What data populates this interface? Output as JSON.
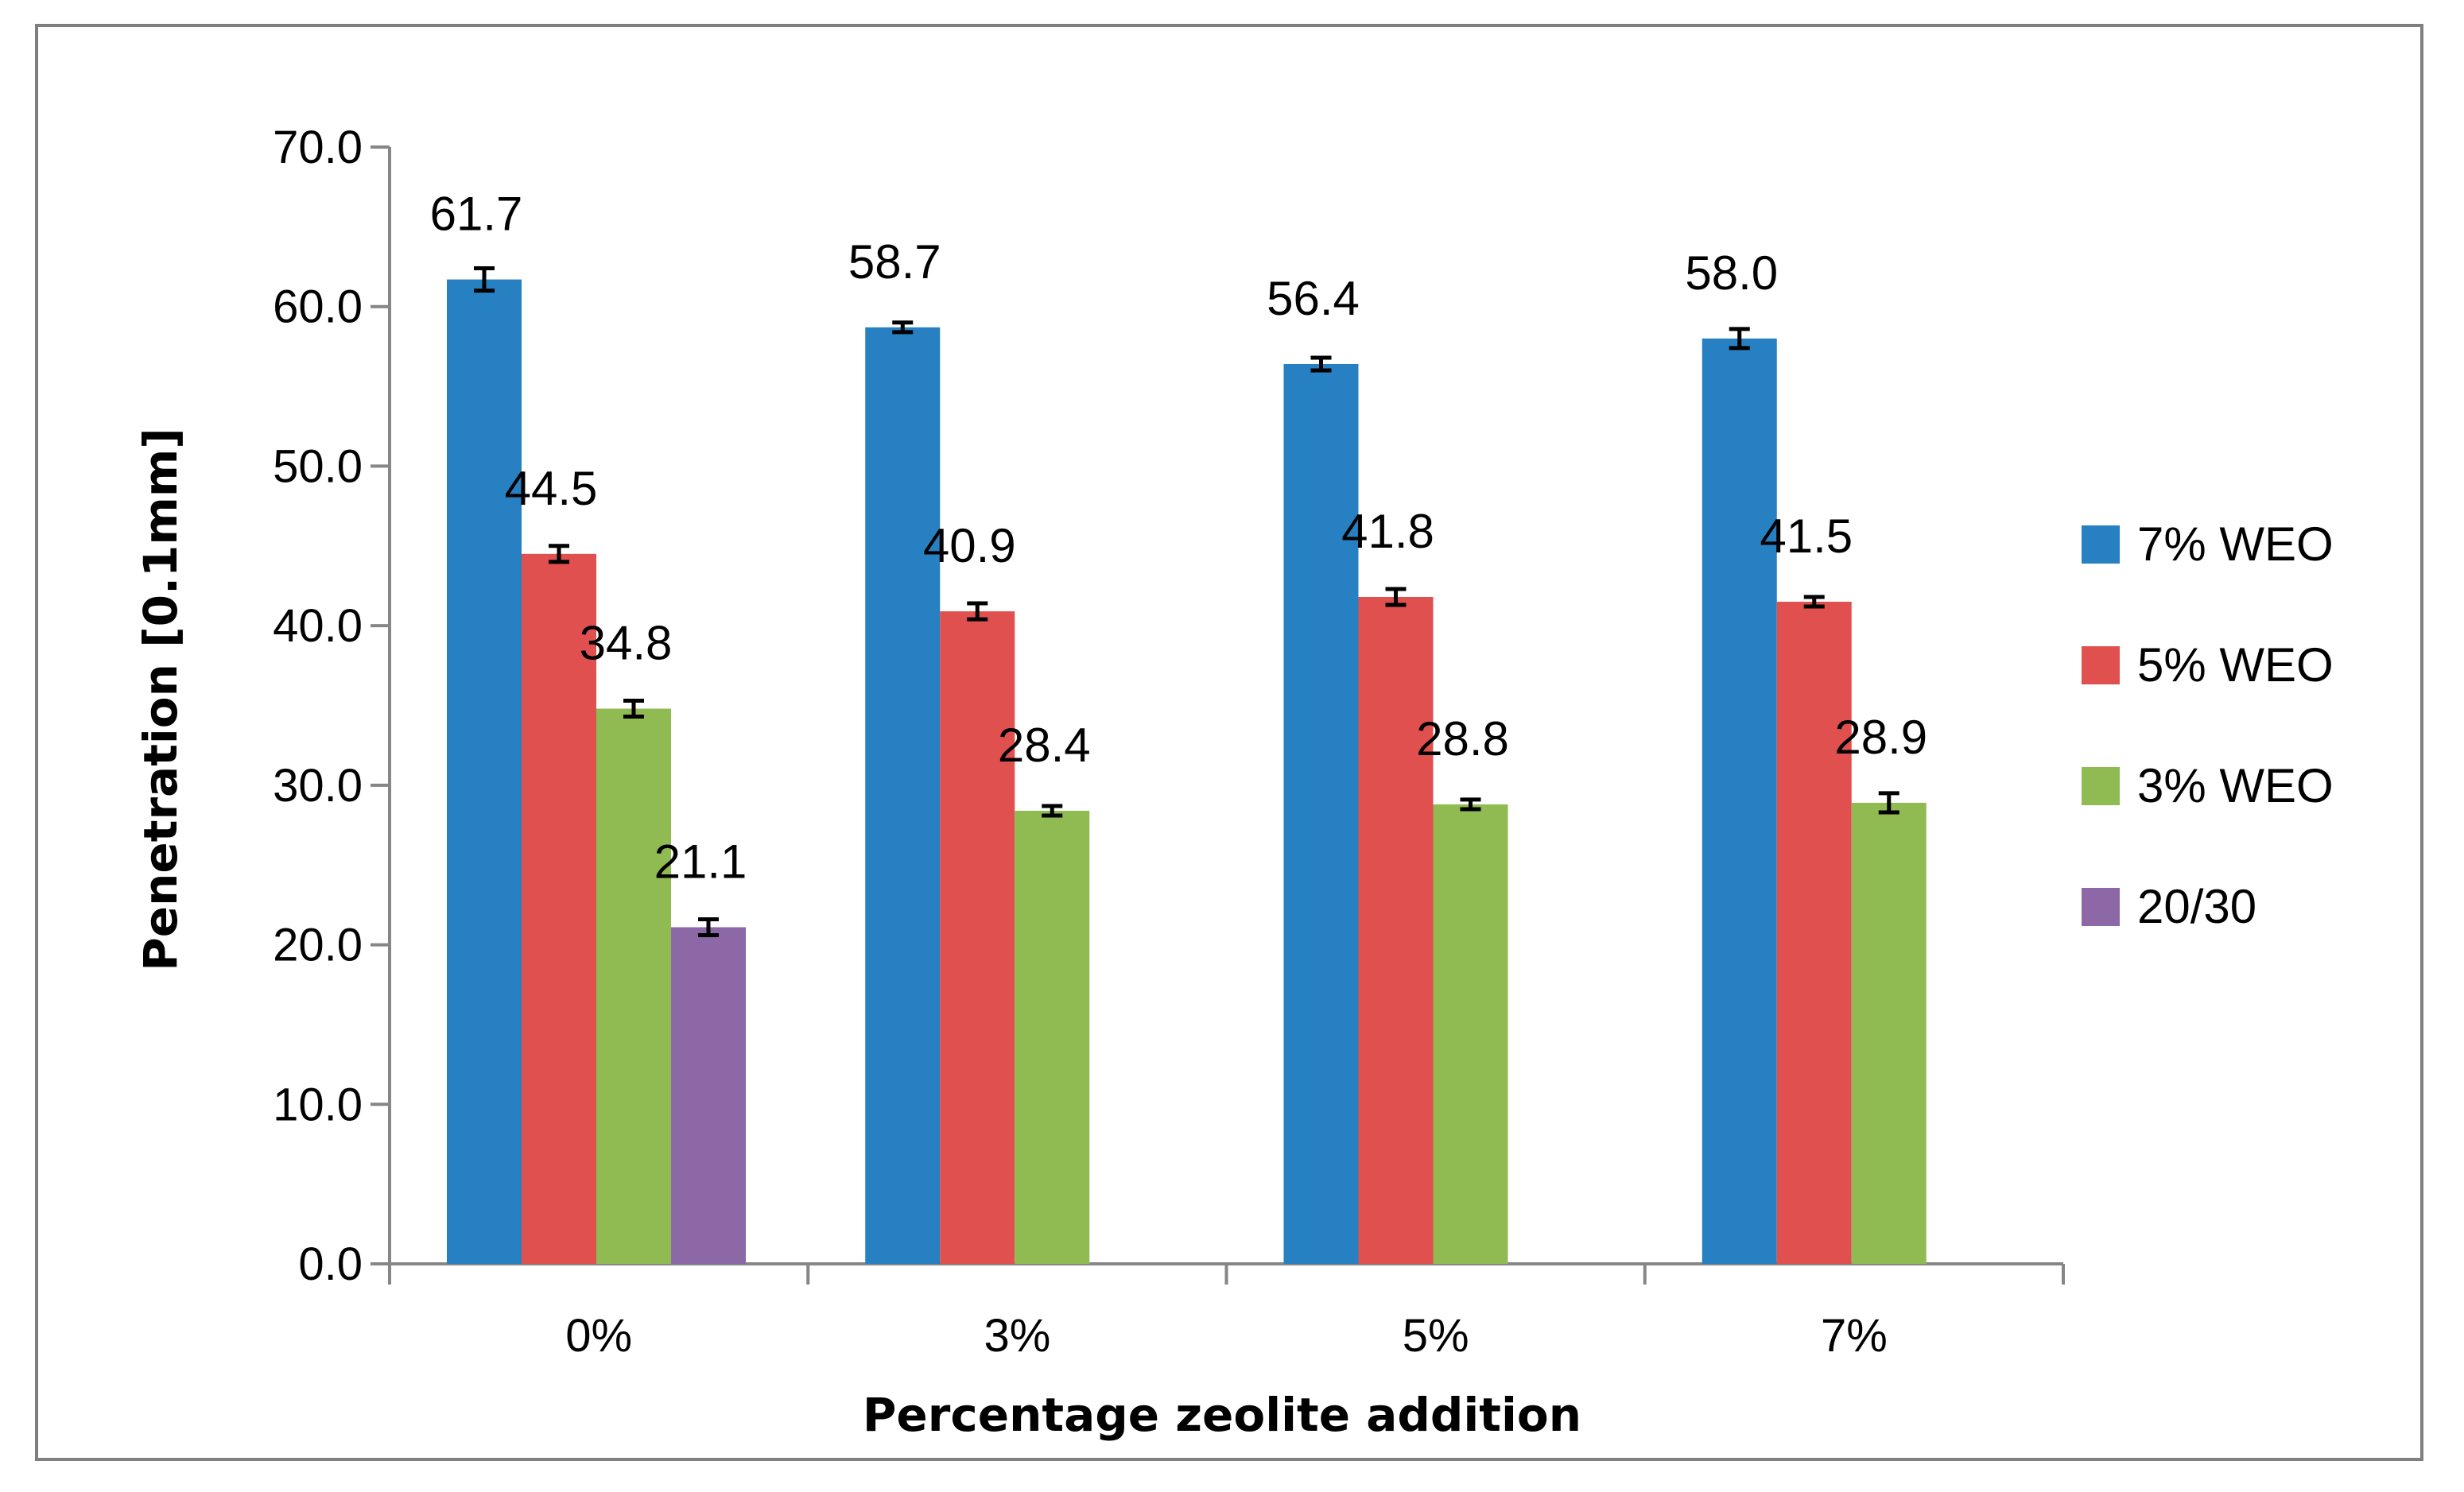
{
  "chart_data": {
    "type": "bar",
    "categories": [
      "0%",
      "3%",
      "5%",
      "7%"
    ],
    "series": [
      {
        "name": "7% WEO",
        "color": "#2680c2",
        "values": [
          61.7,
          58.7,
          56.4,
          58.0
        ],
        "labels": [
          "61.7",
          "58.7",
          "56.4",
          "58.0"
        ],
        "errors": [
          0.7,
          0.3,
          0.4,
          0.6
        ]
      },
      {
        "name": "5% WEO",
        "color": "#e0504e",
        "values": [
          44.5,
          40.9,
          41.8,
          41.5
        ],
        "labels": [
          "44.5",
          "40.9",
          "41.8",
          "41.5"
        ],
        "errors": [
          0.5,
          0.5,
          0.5,
          0.3
        ]
      },
      {
        "name": "3% WEO",
        "color": "#8fbb52",
        "values": [
          34.8,
          28.4,
          28.8,
          28.9
        ],
        "labels": [
          "34.8",
          "28.4",
          "28.8",
          "28.9"
        ],
        "errors": [
          0.5,
          0.3,
          0.3,
          0.6
        ]
      },
      {
        "name": "20/30",
        "color": "#8c68a6",
        "values": [
          21.1,
          null,
          null,
          null
        ],
        "labels": [
          "21.1",
          null,
          null,
          null
        ],
        "errors": [
          0.5,
          null,
          null,
          null
        ]
      }
    ],
    "xlabel": "Percentage zeolite addition",
    "ylabel": "Penetration [0.1mm]",
    "ylim": [
      0,
      70
    ],
    "yticks": [
      "0.0",
      "10.0",
      "20.0",
      "30.0",
      "40.0",
      "50.0",
      "60.0",
      "70.0"
    ],
    "grid": false,
    "legend_position": "right"
  }
}
